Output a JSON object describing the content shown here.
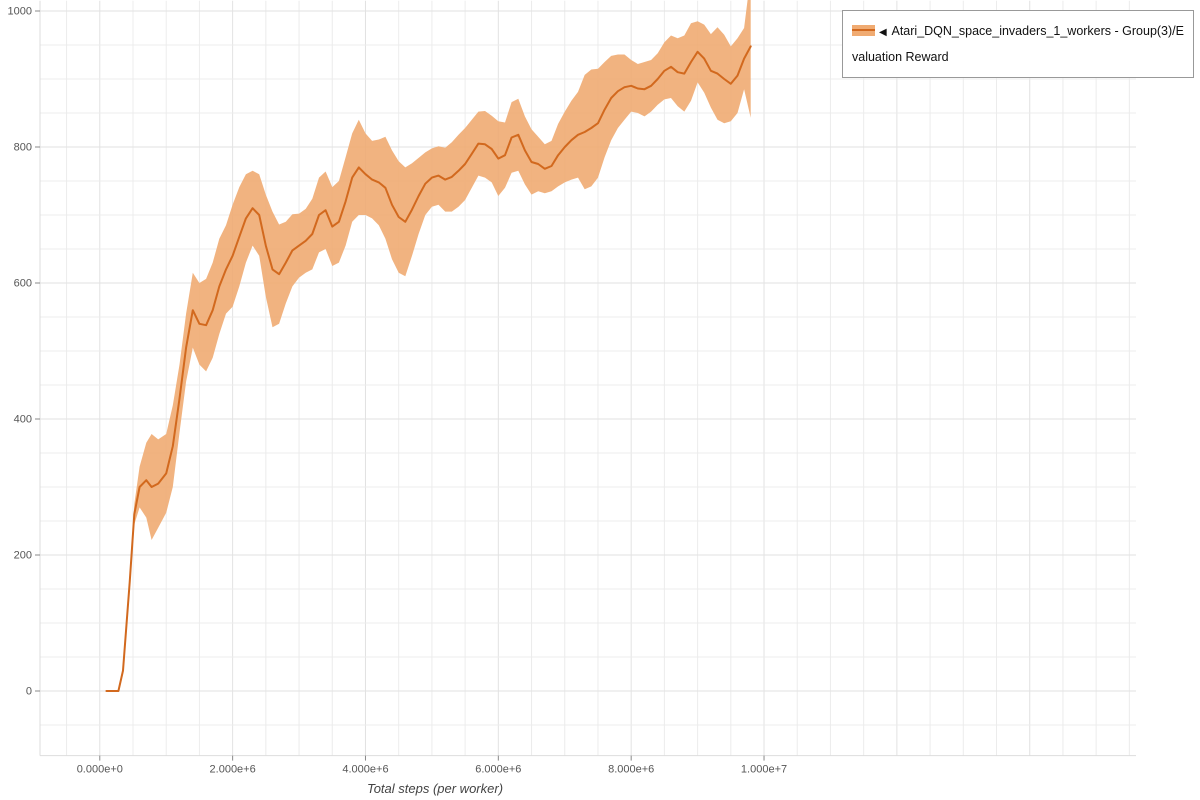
{
  "legend": {
    "collapse_icon": "◀",
    "label": "Atari_DQN_space_invaders_1_workers - Group(3)/Evaluation Reward"
  },
  "chart_data": {
    "type": "line",
    "title": "",
    "xlabel": "Total steps (per worker)",
    "ylabel": "",
    "x_unit": 1000000,
    "x_domain_millions": [
      -0.9,
      15.6
    ],
    "y_domain": [
      -95,
      1015
    ],
    "legend_position": "top-right",
    "grid": {
      "show": true,
      "x_minor_millions": 0.5,
      "x_major_millions": 2,
      "y_minor": 50,
      "y_major": 200
    },
    "x_ticks": [
      {
        "value_millions": 0,
        "label": "0.000e+0"
      },
      {
        "value_millions": 2,
        "label": "2.000e+6"
      },
      {
        "value_millions": 4,
        "label": "4.000e+6"
      },
      {
        "value_millions": 6,
        "label": "6.000e+6"
      },
      {
        "value_millions": 8,
        "label": "8.000e+6"
      },
      {
        "value_millions": 10,
        "label": "1.000e+7"
      }
    ],
    "y_ticks": [
      {
        "value": 0,
        "label": "0"
      },
      {
        "value": 200,
        "label": "200"
      },
      {
        "value": 400,
        "label": "400"
      },
      {
        "value": 600,
        "label": "600"
      },
      {
        "value": 800,
        "label": "800"
      },
      {
        "value": 1000,
        "label": "1000"
      }
    ],
    "series": [
      {
        "name": "Atari_DQN_space_invaders_1_workers - Group(3)/Evaluation Reward",
        "color": "#d2691e",
        "band_color": "#f0ab72",
        "x_millions": [
          0.1,
          0.28,
          0.35,
          0.45,
          0.52,
          0.6,
          0.7,
          0.78,
          0.88,
          1.0,
          1.1,
          1.2,
          1.3,
          1.4,
          1.5,
          1.6,
          1.7,
          1.8,
          1.9,
          2.0,
          2.1,
          2.2,
          2.3,
          2.4,
          2.5,
          2.6,
          2.7,
          2.8,
          2.9,
          3.0,
          3.1,
          3.2,
          3.3,
          3.4,
          3.5,
          3.6,
          3.7,
          3.8,
          3.9,
          4.0,
          4.1,
          4.2,
          4.3,
          4.4,
          4.5,
          4.6,
          4.7,
          4.8,
          4.9,
          5.0,
          5.1,
          5.2,
          5.3,
          5.4,
          5.5,
          5.6,
          5.7,
          5.8,
          5.9,
          6.0,
          6.1,
          6.2,
          6.3,
          6.4,
          6.5,
          6.6,
          6.7,
          6.8,
          6.9,
          7.0,
          7.1,
          7.2,
          7.3,
          7.4,
          7.5,
          7.6,
          7.7,
          7.8,
          7.9,
          8.0,
          8.1,
          8.2,
          8.3,
          8.4,
          8.5,
          8.6,
          8.7,
          8.8,
          8.9,
          9.0,
          9.1,
          9.2,
          9.3,
          9.4,
          9.5,
          9.6,
          9.7,
          9.8
        ],
        "mean": [
          0,
          0,
          30,
          160,
          260,
          300,
          310,
          300,
          305,
          320,
          360,
          430,
          505,
          560,
          540,
          538,
          560,
          595,
          620,
          640,
          668,
          695,
          710,
          700,
          655,
          620,
          613,
          630,
          648,
          655,
          662,
          672,
          700,
          707,
          683,
          690,
          720,
          755,
          770,
          760,
          752,
          748,
          740,
          715,
          697,
          690,
          708,
          728,
          746,
          755,
          758,
          752,
          756,
          765,
          775,
          790,
          805,
          804,
          797,
          783,
          788,
          814,
          818,
          795,
          778,
          775,
          768,
          772,
          788,
          800,
          810,
          818,
          822,
          828,
          835,
          855,
          872,
          882,
          888,
          890,
          886,
          885,
          890,
          900,
          912,
          918,
          910,
          908,
          925,
          940,
          930,
          912,
          908,
          900,
          893,
          905,
          930,
          948
        ],
        "lower": [
          0,
          0,
          25,
          150,
          245,
          270,
          255,
          222,
          240,
          262,
          300,
          380,
          455,
          505,
          480,
          470,
          490,
          525,
          555,
          565,
          595,
          630,
          655,
          640,
          580,
          535,
          540,
          570,
          595,
          608,
          615,
          620,
          645,
          650,
          625,
          630,
          655,
          690,
          700,
          700,
          695,
          685,
          665,
          635,
          615,
          610,
          640,
          672,
          700,
          712,
          715,
          705,
          705,
          712,
          722,
          740,
          758,
          755,
          748,
          728,
          740,
          762,
          765,
          745,
          730,
          735,
          732,
          735,
          742,
          748,
          752,
          755,
          738,
          742,
          755,
          785,
          810,
          828,
          840,
          852,
          850,
          845,
          852,
          862,
          870,
          872,
          860,
          852,
          868,
          895,
          880,
          858,
          840,
          835,
          838,
          850,
          885,
          843
        ],
        "upper": [
          0,
          0,
          35,
          170,
          275,
          330,
          365,
          378,
          370,
          378,
          420,
          480,
          555,
          615,
          600,
          606,
          630,
          665,
          685,
          715,
          741,
          760,
          765,
          760,
          730,
          705,
          686,
          690,
          701,
          702,
          709,
          724,
          755,
          764,
          741,
          750,
          785,
          820,
          840,
          820,
          809,
          811,
          815,
          795,
          779,
          770,
          776,
          784,
          792,
          798,
          801,
          799,
          807,
          818,
          828,
          840,
          852,
          853,
          846,
          838,
          836,
          866,
          871,
          845,
          826,
          815,
          804,
          809,
          834,
          852,
          868,
          881,
          906,
          914,
          915,
          925,
          934,
          936,
          936,
          928,
          922,
          925,
          928,
          938,
          954,
          964,
          960,
          964,
          982,
          985,
          980,
          966,
          976,
          965,
          948,
          960,
          975,
          1053
        ]
      }
    ],
    "colors": {
      "grid_minor": "#ececec",
      "grid_major": "#e2e2e2",
      "axis_domain": "#dddddd",
      "tick": "#888888",
      "tick_text": "#555555"
    }
  }
}
